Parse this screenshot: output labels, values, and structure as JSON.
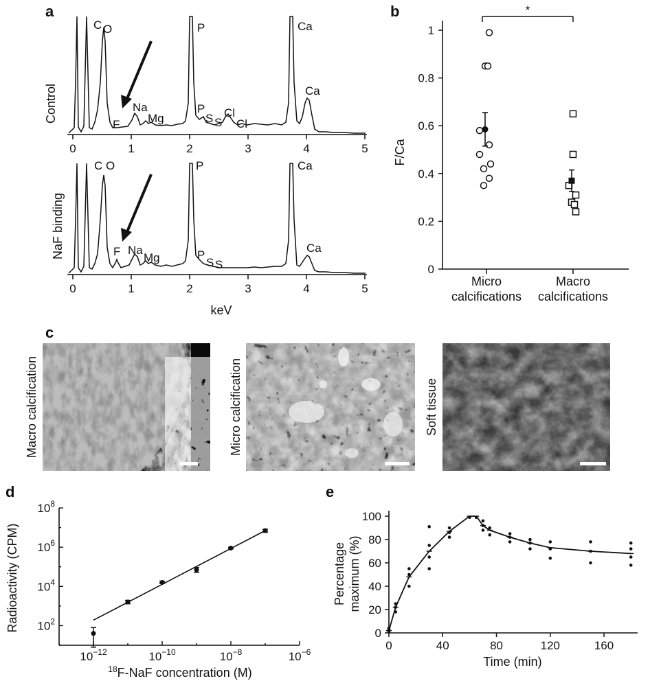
{
  "panels": {
    "a": "a",
    "b": "b",
    "c": "c",
    "d": "d",
    "e": "e"
  },
  "panel_a": {
    "xlabel": "keV",
    "ticks": [
      "0",
      "1",
      "2",
      "3",
      "4",
      "5"
    ],
    "control": {
      "ylabel": "Control",
      "peaks": [
        "C",
        "O",
        "F",
        "Na",
        "Mg",
        "P",
        "P",
        "S",
        "S",
        "Cl",
        "Cl",
        "Ca",
        "Ca"
      ]
    },
    "naf": {
      "ylabel": "NaF binding",
      "peaks": [
        "C",
        "O",
        "F",
        "Na",
        "Mg",
        "P",
        "P",
        "S",
        "S",
        "Ca",
        "Ca"
      ]
    }
  },
  "panel_c": {
    "images": [
      "Macro calcification",
      "Micro calcification",
      "Soft tissue"
    ]
  },
  "chart_data": [
    {
      "panel": "b",
      "type": "scatter",
      "ylabel": "F/Ca",
      "ylim": [
        0,
        1
      ],
      "yticks": [
        "0",
        "0.2",
        "0.4",
        "0.6",
        "0.8",
        "1"
      ],
      "categories": [
        "Micro calcifications",
        "Macro calcifications"
      ],
      "category_lines": [
        [
          "Micro",
          "calcifications"
        ],
        [
          "Macro",
          "calcifications"
        ]
      ],
      "significance": "*",
      "series": [
        {
          "name": "Micro calcifications",
          "marker": "open-circle",
          "points": [
            0.99,
            0.85,
            0.85,
            0.58,
            0.52,
            0.48,
            0.44,
            0.42,
            0.38,
            0.35
          ],
          "mean": 0.585,
          "error": 0.07
        },
        {
          "name": "Macro calcifications",
          "marker": "open-square",
          "points": [
            0.65,
            0.48,
            0.35,
            0.31,
            0.28,
            0.27,
            0.24
          ],
          "mean": 0.37,
          "error": 0.045
        }
      ]
    },
    {
      "panel": "d",
      "type": "scatter",
      "xscale": "log",
      "yscale": "log",
      "xlabel_sup": "18",
      "xlabel": "F-NaF concentration (M)",
      "ylabel": "Radioactivity (CPM)",
      "xticks": [
        {
          "base": "10",
          "exp": "−12",
          "v": -12
        },
        {
          "base": "10",
          "exp": "−10",
          "v": -10
        },
        {
          "base": "10",
          "exp": "−8",
          "v": -8
        },
        {
          "base": "10",
          "exp": "−6",
          "v": -6
        }
      ],
      "yticks": [
        {
          "base": "10",
          "exp": "2",
          "v": 2
        },
        {
          "base": "10",
          "exp": "4",
          "v": 4
        },
        {
          "base": "10",
          "exp": "6",
          "v": 6
        },
        {
          "base": "10",
          "exp": "8",
          "v": 8
        }
      ],
      "xlim_log": [
        -13,
        -6
      ],
      "ylim_log": [
        1,
        8
      ],
      "points": [
        {
          "x": 1e-12,
          "y": 40,
          "err_lo": 8,
          "err_hi": 80
        },
        {
          "x": 1e-11,
          "y": 1600,
          "err_lo": 1300,
          "err_hi": 1950
        },
        {
          "x": 1e-10,
          "y": 16000,
          "err_lo": 14000,
          "err_hi": 18500
        },
        {
          "x": 1e-09,
          "y": 70000,
          "err_lo": 52000,
          "err_hi": 92000
        },
        {
          "x": 1e-08,
          "y": 900000,
          "err_lo": 820000,
          "err_hi": 990000
        },
        {
          "x": 1e-07,
          "y": 7000000,
          "err_lo": 5800000,
          "err_hi": 8200000
        }
      ],
      "fit": [
        [
          1e-12,
          190
        ],
        [
          1e-07,
          7000000
        ]
      ]
    },
    {
      "panel": "e",
      "type": "line",
      "xlabel": "Time (min)",
      "ylabel_lines": [
        "Percentage",
        "maximum (%)"
      ],
      "xlim": [
        0,
        185
      ],
      "ylim": [
        0,
        100
      ],
      "xticks": [
        "0",
        "40",
        "80",
        "120",
        "160"
      ],
      "yticks": [
        "0",
        "20",
        "40",
        "60",
        "80",
        "100"
      ],
      "mean": [
        [
          0,
          2
        ],
        [
          5,
          22
        ],
        [
          15,
          48
        ],
        [
          30,
          70
        ],
        [
          45,
          87
        ],
        [
          60,
          100
        ],
        [
          65,
          100
        ],
        [
          70,
          92
        ],
        [
          75,
          88
        ],
        [
          90,
          82
        ],
        [
          105,
          77
        ],
        [
          120,
          73
        ],
        [
          150,
          70
        ],
        [
          180,
          68
        ]
      ],
      "scatter": [
        [
          0,
          1
        ],
        [
          0,
          3
        ],
        [
          0,
          4
        ],
        [
          5,
          18
        ],
        [
          5,
          22
        ],
        [
          5,
          25
        ],
        [
          15,
          40
        ],
        [
          15,
          50
        ],
        [
          15,
          55
        ],
        [
          30,
          55
        ],
        [
          30,
          65
        ],
        [
          30,
          75
        ],
        [
          30,
          91
        ],
        [
          45,
          82
        ],
        [
          45,
          86
        ],
        [
          45,
          90
        ],
        [
          60,
          99
        ],
        [
          65,
          99
        ],
        [
          70,
          88
        ],
        [
          70,
          92
        ],
        [
          70,
          96
        ],
        [
          75,
          84
        ],
        [
          75,
          90
        ],
        [
          90,
          78
        ],
        [
          90,
          82
        ],
        [
          90,
          85
        ],
        [
          105,
          72
        ],
        [
          105,
          77
        ],
        [
          105,
          80
        ],
        [
          120,
          64
        ],
        [
          120,
          72
        ],
        [
          120,
          78
        ],
        [
          150,
          60
        ],
        [
          150,
          70
        ],
        [
          150,
          78
        ],
        [
          180,
          58
        ],
        [
          180,
          65
        ],
        [
          180,
          72
        ],
        [
          180,
          77
        ]
      ]
    }
  ]
}
